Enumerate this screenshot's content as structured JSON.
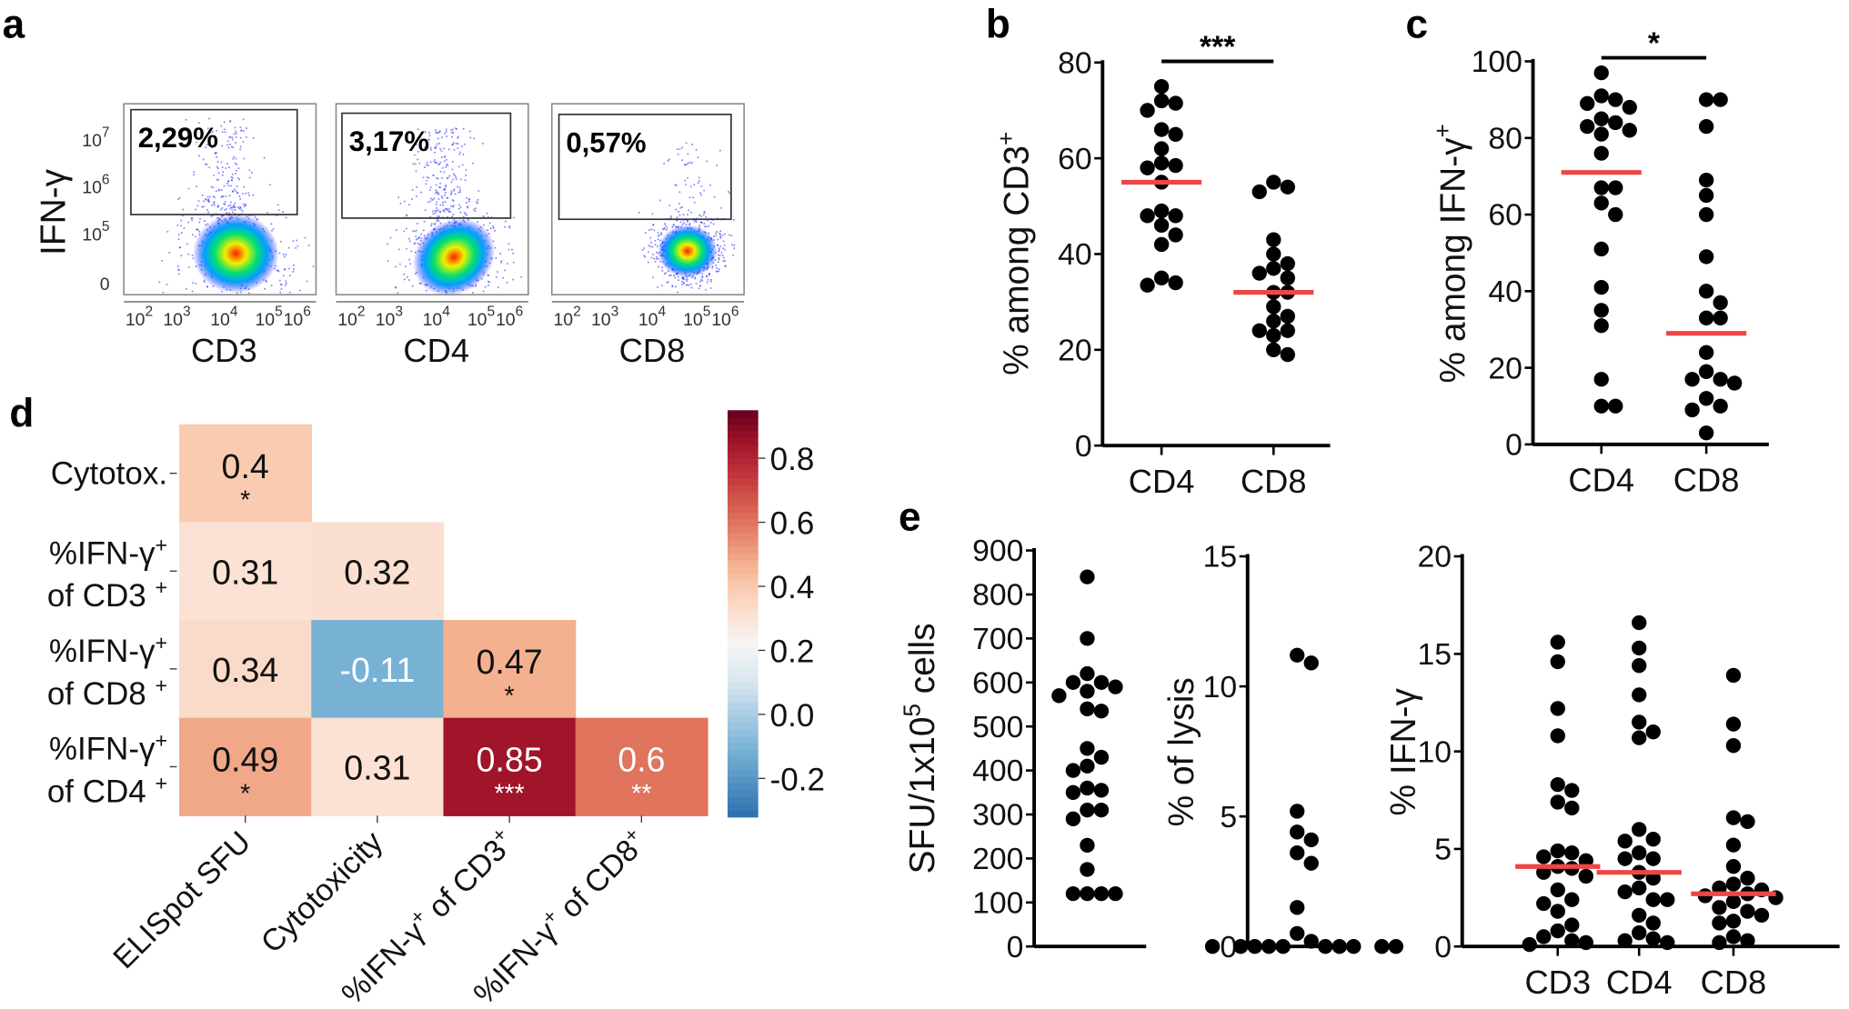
{
  "panel_letters": {
    "a": "a",
    "b": "b",
    "c": "c",
    "d": "d",
    "e": "e"
  },
  "chart_data": [
    {
      "id": "a",
      "type": "scatter",
      "subtype": "flow-cytometry-density",
      "ylabel": "IFN-γ",
      "y_ticks": [
        {
          "base": "10",
          "exp": "7"
        },
        {
          "base": "10",
          "exp": "6"
        },
        {
          "base": "10",
          "exp": "5"
        },
        {
          "base": "0",
          "exp": ""
        }
      ],
      "x_ticks": [
        {
          "base": "10",
          "exp": "2"
        },
        {
          "base": "10",
          "exp": "3"
        },
        {
          "base": "10",
          "exp": "4"
        },
        {
          "base": "10",
          "exp": "5"
        },
        {
          "base": "10",
          "exp": "6"
        }
      ],
      "plots": [
        {
          "xlabel": "CD3",
          "gate_percent": "2,29%"
        },
        {
          "xlabel": "CD4",
          "gate_percent": "3,17%"
        },
        {
          "xlabel": "CD8",
          "gate_percent": "0,57%"
        }
      ],
      "density_colors": [
        "#1a1aff",
        "#00a0ff",
        "#00e070",
        "#f0f000",
        "#ff2000"
      ]
    },
    {
      "id": "b",
      "type": "scatter",
      "ylabel": "% among CD3",
      "ylabel_sup": "+",
      "ylim": [
        0,
        80
      ],
      "y_ticks": [
        0,
        20,
        40,
        60,
        80
      ],
      "categories": [
        "CD4",
        "CD8"
      ],
      "series": [
        {
          "category": "CD4",
          "values": [
            75,
            72,
            71.5,
            70,
            66,
            65,
            62,
            59,
            58.5,
            58,
            55,
            49,
            48,
            48,
            46,
            44,
            42,
            35,
            34,
            33.5
          ],
          "mean": 55
        },
        {
          "category": "CD8",
          "values": [
            55,
            54,
            53,
            43,
            40,
            38,
            37,
            36,
            35,
            32,
            32,
            29,
            27,
            26,
            24,
            24,
            23,
            20,
            19
          ],
          "mean": 32
        }
      ],
      "significance": "***",
      "mean_color": "#f04545"
    },
    {
      "id": "c",
      "type": "scatter",
      "ylabel": "% among IFN-γ",
      "ylabel_sup": "+",
      "ylim": [
        0,
        100
      ],
      "y_ticks": [
        0,
        20,
        40,
        60,
        80,
        100
      ],
      "categories": [
        "CD4",
        "CD8"
      ],
      "series": [
        {
          "category": "CD4",
          "values": [
            97,
            91,
            90,
            89,
            88,
            85,
            84,
            83,
            82,
            81,
            76,
            67,
            67,
            63,
            60,
            51,
            41,
            35,
            31,
            17,
            10,
            10
          ],
          "mean": 71
        },
        {
          "category": "CD8",
          "values": [
            90,
            90,
            83,
            69,
            65,
            60,
            49,
            40,
            37,
            33,
            33,
            24,
            19,
            17,
            17,
            16,
            12,
            10,
            9,
            3
          ],
          "mean": 29
        }
      ],
      "significance": "*",
      "mean_color": "#f04545"
    },
    {
      "id": "d",
      "type": "heatmap",
      "row_labels": [
        {
          "line1": "Cytotox.",
          "sup1": "",
          "line2": "",
          "sup2": ""
        },
        {
          "line1": "%IFN-γ",
          "sup1": "+",
          "line2": "of CD3",
          "sup2": "+"
        },
        {
          "line1": "%IFN-γ",
          "sup1": "+",
          "line2": "of CD8",
          "sup2": "+"
        },
        {
          "line1": "%IFN-γ",
          "sup1": "+",
          "line2": "of CD4",
          "sup2": "+"
        }
      ],
      "col_labels": [
        {
          "text": "ELISpot SFU",
          "sup": "",
          "tail": ""
        },
        {
          "text": "Cytotoxicity",
          "sup": "",
          "tail": ""
        },
        {
          "text": "%IFN-γ",
          "sup": "+",
          "tail": " of CD3",
          "sup2": "+"
        },
        {
          "text": "%IFN-γ",
          "sup": "+",
          "tail": " of CD8",
          "sup2": "+"
        }
      ],
      "values": [
        [
          0.4
        ],
        [
          0.31,
          0.32
        ],
        [
          0.34,
          -0.11,
          0.47
        ],
        [
          0.49,
          0.31,
          0.85,
          0.6
        ]
      ],
      "value_labels": [
        [
          "0.4"
        ],
        [
          "0.31",
          "0.32"
        ],
        [
          "0.34",
          "-0.11",
          "0.47"
        ],
        [
          "0.49",
          "0.31",
          "0.85",
          "0.6"
        ]
      ],
      "stars": [
        [
          "*"
        ],
        [
          "",
          ""
        ],
        [
          "",
          "",
          "*"
        ],
        [
          "*",
          "",
          "***",
          "**"
        ]
      ],
      "colorbar": {
        "range": [
          -0.32,
          0.95
        ],
        "ticks": [
          0.8,
          0.6,
          0.4,
          0.2,
          0.0,
          -0.2
        ],
        "tick_labels": [
          "0.8",
          "0.6",
          "0.4",
          "0.2",
          "0.0",
          "-0.2"
        ],
        "colormap": "RdBu_r",
        "stops": [
          [
            -0.32,
            "#2d6fb0"
          ],
          [
            -0.11,
            "#77b2d5"
          ],
          [
            0.1,
            "#d6e6f0"
          ],
          [
            0.22,
            "#f7f4f2"
          ],
          [
            0.31,
            "#fbe2d4"
          ],
          [
            0.4,
            "#f9cbb0"
          ],
          [
            0.47,
            "#f4b190"
          ],
          [
            0.6,
            "#e0745c"
          ],
          [
            0.75,
            "#c0363c"
          ],
          [
            0.85,
            "#a0152a"
          ],
          [
            0.95,
            "#67001f"
          ]
        ]
      }
    },
    {
      "id": "e1",
      "type": "scatter",
      "ylabel": "SFU/1x10",
      "ylabel_sup": "5",
      "ylabel_tail": " cells",
      "ylim": [
        0,
        900
      ],
      "y_ticks": [
        0,
        100,
        200,
        300,
        400,
        500,
        600,
        700,
        800,
        900
      ],
      "categories": [
        ""
      ],
      "series": [
        {
          "category": "",
          "values": [
            840,
            700,
            620,
            600,
            600,
            590,
            580,
            570,
            540,
            535,
            450,
            430,
            410,
            400,
            360,
            355,
            350,
            310,
            310,
            290,
            230,
            175,
            120,
            120,
            120,
            120
          ]
        }
      ]
    },
    {
      "id": "e2",
      "type": "scatter",
      "ylabel": "% of lysis",
      "ylim": [
        0,
        15
      ],
      "y_ticks": [
        0,
        5,
        10,
        15
      ],
      "categories": [
        ""
      ],
      "series": [
        {
          "category": "",
          "values": [
            11.2,
            10.9,
            5.2,
            4.4,
            4.1,
            3.6,
            3.2,
            1.5,
            0.5,
            0.2,
            0,
            0,
            0,
            0,
            0,
            0,
            0,
            0,
            0,
            0
          ]
        }
      ]
    },
    {
      "id": "e3",
      "type": "scatter",
      "ylabel": "% IFN-γ",
      "ylim": [
        0,
        20
      ],
      "y_ticks": [
        0,
        5,
        10,
        15,
        20
      ],
      "categories": [
        "CD3",
        "CD4",
        "CD8"
      ],
      "series": [
        {
          "category": "CD3",
          "values": [
            15.6,
            14.6,
            12.2,
            10.8,
            8.3,
            8.0,
            7.4,
            7.1,
            4.9,
            4.8,
            4.6,
            4.4,
            4.1,
            4.0,
            3.8,
            3.6,
            2.9,
            2.4,
            2.2,
            1.8,
            1.1,
            0.8,
            0.5,
            0.3,
            0.2,
            0.1
          ],
          "mean": 4.1
        },
        {
          "category": "CD4",
          "values": [
            16.6,
            15.3,
            14.4,
            12.9,
            11.5,
            11.0,
            10.7,
            6.0,
            5.5,
            5.4,
            4.8,
            4.5,
            4.5,
            3.8,
            3.5,
            3.0,
            2.8,
            2.4,
            2.4,
            1.6,
            1.2,
            0.7,
            0.4,
            0.3,
            0.2
          ],
          "mean": 3.8
        },
        {
          "category": "CD8",
          "values": [
            13.9,
            11.4,
            10.3,
            6.6,
            6.4,
            5.2,
            4.1,
            3.5,
            3.2,
            3.0,
            2.9,
            2.7,
            2.6,
            2.5,
            2.3,
            2.0,
            1.8,
            1.6,
            1.3,
            1.2,
            0.5,
            0.3,
            0.2
          ],
          "mean": 2.7
        }
      ],
      "mean_color": "#f04545"
    }
  ]
}
